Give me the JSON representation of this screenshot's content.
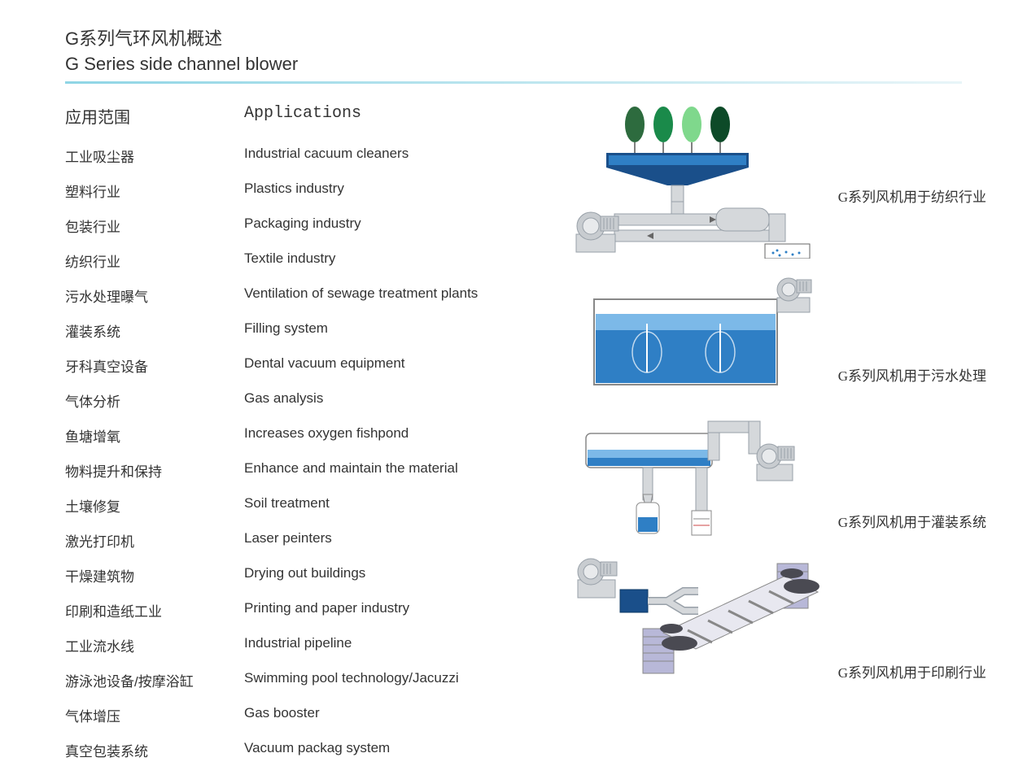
{
  "header": {
    "title_cn": "G系列气环风机概述",
    "title_en": "G Series side channel blower"
  },
  "section": {
    "label_cn": "应用范围",
    "label_en": "Applications"
  },
  "applications": [
    {
      "cn": "工业吸尘器",
      "en": "Industrial cacuum cleaners"
    },
    {
      "cn": "塑料行业",
      "en": "Plastics industry"
    },
    {
      "cn": "包装行业",
      "en": "Packaging industry"
    },
    {
      "cn": "纺织行业",
      "en": "Textile industry"
    },
    {
      "cn": "污水处理曝气",
      "en": "Ventilation of sewage treatment plants"
    },
    {
      "cn": "灌装系统",
      "en": "Filling system"
    },
    {
      "cn": "牙科真空设备",
      "en": "Dental vacuum equipment"
    },
    {
      "cn": "气体分析",
      "en": "Gas analysis"
    },
    {
      "cn": "鱼塘增氧",
      "en": "Increases oxygen fishpond"
    },
    {
      "cn": "物料提升和保持",
      "en": "Enhance and maintain the material"
    },
    {
      "cn": "土壤修复",
      "en": "Soil treatment"
    },
    {
      "cn": "激光打印机",
      "en": "Laser peinters"
    },
    {
      "cn": "干燥建筑物",
      "en": "Drying out buildings"
    },
    {
      "cn": "印刷和造纸工业",
      "en": "Printing and paper industry"
    },
    {
      "cn": "工业流水线",
      "en": "Industrial pipeline"
    },
    {
      "cn": "游泳池设备/按摩浴缸",
      "en": "Swimming pool technology/Jacuzzi"
    },
    {
      "cn": "气体增压",
      "en": "Gas booster"
    },
    {
      "cn": "真空包装系统",
      "en": "Vacuum packag system"
    }
  ],
  "figures": [
    {
      "caption": "G系列风机用于纺织行业",
      "type": "textile"
    },
    {
      "caption": "G系列风机用于污水处理",
      "type": "sewage"
    },
    {
      "caption": "G系列风机用于灌装系统",
      "type": "filling"
    },
    {
      "caption": "G系列风机用于印刷行业",
      "type": "printing"
    }
  ],
  "colors": {
    "text": "#333333",
    "rule_start": "#8fd5e5",
    "rule_end": "#e8f5f8",
    "blower_grey": "#c8ccd0",
    "blower_grey_dark": "#98a0a8",
    "pipe_grey": "#d5d8db",
    "pipe_grey_dark": "#aeb4ba",
    "water_blue": "#2f7fc5",
    "water_light": "#7cb9e8",
    "tank_green1": "#2d6b3e",
    "tank_green2": "#1a8a4a",
    "tank_green3": "#7fd88c",
    "tank_green4": "#0d4a28",
    "hopper_blue": "#1a4f8a",
    "box_blue": "#1a4f8a",
    "roller_dark": "#4a4a52",
    "sheet_purple": "#b8b8d8"
  }
}
